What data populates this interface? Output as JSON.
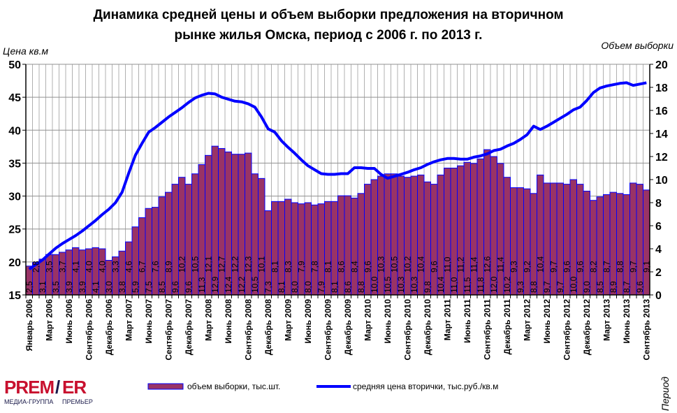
{
  "chart_data": {
    "type": "bar+line",
    "title_line1": "Динамика  средней цены и объем выборки предложения на вторичном",
    "title_line2": "рынке жилья Омска, период с 2006 г. по 2013 г.",
    "ylabel_left": "Цена кв.м",
    "ylabel_right": "Объем выборки",
    "xlabel": "Период",
    "ylim_left": [
      15,
      50
    ],
    "yticks_left": [
      15,
      20,
      25,
      30,
      35,
      40,
      45,
      50
    ],
    "ylim_right": [
      0,
      20
    ],
    "yticks_right": [
      0,
      2,
      4,
      6,
      8,
      10,
      12,
      14,
      16,
      18,
      20
    ],
    "grid": true,
    "legend_position": "bottom",
    "x_tick_labels": [
      "Январь 2006",
      "Март 2006",
      "Июнь 2006",
      "Сентябрь 2006",
      "Декабрь 2006",
      "Март 2007",
      "Июнь 2007",
      "Сентябрь 2007",
      "Декабрь 2007",
      "Март 2008",
      "Июнь 2008",
      "Сентябрь 2008",
      "Декабрь 2008",
      "Март 2009",
      "Июнь 2009",
      "Сентябрь 2009",
      "Декабрь 2009",
      "Март 2010",
      "Июнь 2010",
      "Сентябрь 2010",
      "Декабрь 2010",
      "Март 2011",
      "Июнь 2011",
      "Сентябрь 2011",
      "Декабрь 2011",
      "Март 2012",
      "Июнь 2012",
      "Сентябрь 2012",
      "Декабрь 2012",
      "Март 2013",
      "Июнь 2013",
      "Сентябрь 2013"
    ],
    "series": [
      {
        "name": "объем выборки, тыс.шт.",
        "type": "bar",
        "axis": "right",
        "color": "#993366",
        "border_color": "#0000FF",
        "values": [
          2.5,
          2.8,
          3.1,
          3.5,
          3.5,
          3.7,
          3.9,
          4.1,
          3.9,
          4.0,
          4.1,
          4.0,
          3.0,
          3.3,
          3.8,
          4.6,
          5.9,
          6.7,
          7.5,
          7.6,
          8.5,
          8.9,
          9.6,
          10.2,
          9.6,
          10.5,
          11.3,
          12.1,
          12.9,
          12.7,
          12.4,
          12.2,
          12.2,
          12.3,
          10.5,
          10.1,
          7.3,
          8.1,
          8.1,
          8.3,
          8.0,
          7.9,
          8.0,
          7.8,
          7.9,
          8.1,
          8.1,
          8.6,
          8.6,
          8.4,
          8.8,
          9.6,
          10.0,
          10.3,
          10.5,
          10.5,
          10.3,
          10.2,
          10.3,
          10.4,
          9.8,
          9.6,
          10.4,
          11.0,
          11.0,
          11.2,
          11.5,
          11.4,
          11.8,
          12.6,
          12.0,
          11.4,
          10.2,
          9.3,
          9.3,
          9.2,
          8.8,
          10.4,
          9.7,
          9.7,
          9.7,
          9.6,
          10.0,
          9.6,
          9.0,
          8.2,
          8.5,
          8.7,
          8.9,
          8.8,
          8.7,
          9.7,
          9.6,
          9.1
        ]
      },
      {
        "name": "средняя цена вторички, тыс.руб./кв.м",
        "type": "line",
        "axis": "left",
        "color": "#0000FF",
        "values": [
          18.9,
          19.6,
          20.3,
          21.2,
          22.1,
          22.8,
          23.4,
          24.0,
          24.7,
          25.5,
          26.3,
          27.2,
          28.0,
          29.0,
          30.6,
          33.5,
          36.2,
          38.0,
          39.7,
          40.4,
          41.2,
          42.0,
          42.7,
          43.4,
          44.2,
          44.9,
          45.3,
          45.6,
          45.5,
          45.0,
          44.7,
          44.4,
          44.3,
          44.0,
          43.5,
          42.0,
          40.2,
          39.7,
          38.4,
          37.4,
          36.5,
          35.5,
          34.6,
          34.0,
          33.4,
          33.3,
          33.3,
          33.4,
          33.4,
          34.3,
          34.3,
          34.2,
          34.2,
          33.3,
          32.7,
          33.0,
          33.3,
          33.6,
          34.0,
          34.3,
          34.8,
          35.2,
          35.5,
          35.7,
          35.7,
          35.6,
          35.6,
          35.9,
          36.1,
          36.4,
          36.9,
          37.1,
          37.6,
          38.0,
          38.6,
          39.3,
          40.6,
          40.1,
          40.6,
          41.2,
          41.8,
          42.4,
          43.1,
          43.5,
          44.5,
          45.7,
          46.4,
          46.7,
          46.9,
          47.1,
          47.2,
          46.8,
          47.0,
          47.2
        ]
      }
    ]
  },
  "logo": {
    "brand": "PREMIER",
    "subtitle_left": "МЕДИА-ГРУППА",
    "subtitle_right": "ПРЕМЬЕР",
    "color_red": "#C8102E",
    "color_dark": "#1A1A4A"
  }
}
